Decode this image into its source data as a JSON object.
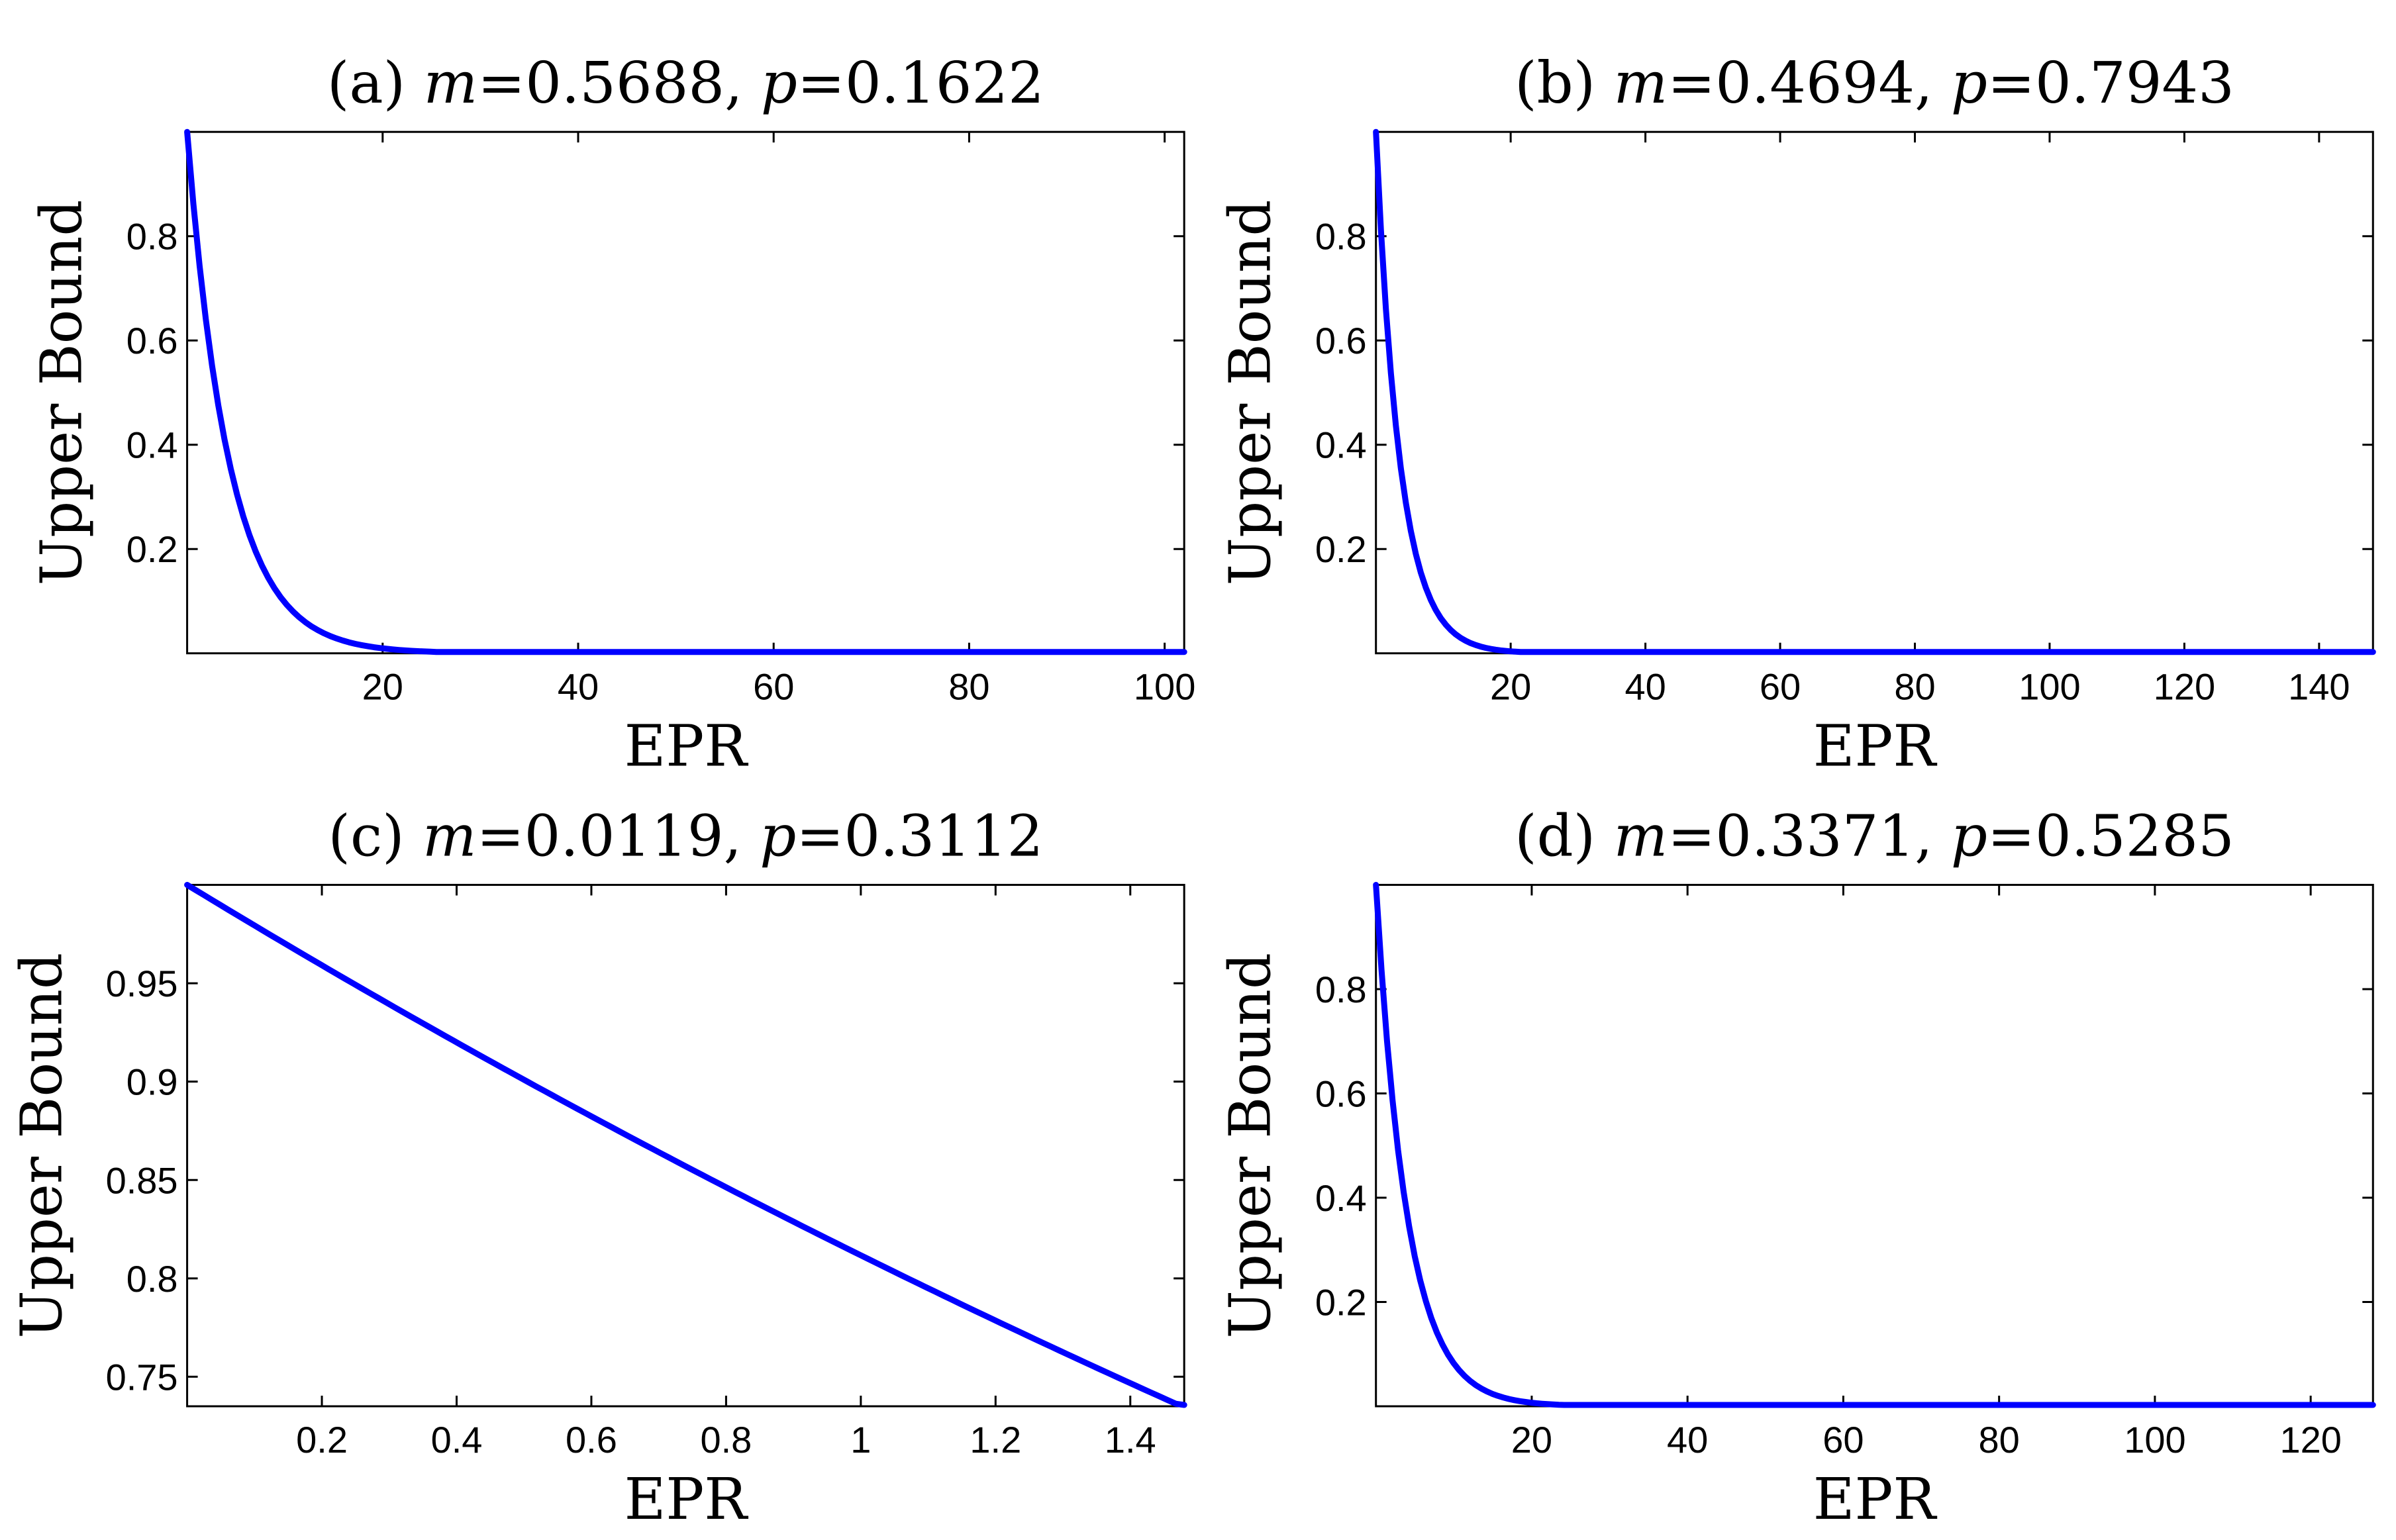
{
  "chart_data": [
    {
      "type": "line",
      "title_prefix": "(a) ",
      "m_value": "0.5688",
      "p_value": "0.1622",
      "xlabel": "EPR",
      "ylabel": "Upper Bound",
      "xlim": [
        0,
        102
      ],
      "ylim": [
        0,
        1.0
      ],
      "xticks": [
        20,
        40,
        60,
        80,
        100
      ],
      "xtick_labels": [
        "20",
        "40",
        "60",
        "80",
        "100"
      ],
      "yticks": [
        0.2,
        0.4,
        0.6,
        0.8
      ],
      "ytick_labels": [
        "0.2",
        "0.4",
        "0.6",
        "0.8"
      ],
      "series": [
        {
          "name": "upper-bound",
          "color": "#0000ff",
          "x_start": 0,
          "x_end": 102,
          "y0": 1.0,
          "decay_rate": 0.233,
          "n_points": 160
        }
      ]
    },
    {
      "type": "line",
      "title_prefix": "(b) ",
      "m_value": "0.4694",
      "p_value": "0.7943",
      "xlabel": "EPR",
      "ylabel": "Upper Bound",
      "xlim": [
        0,
        148
      ],
      "ylim": [
        0,
        1.0
      ],
      "xticks": [
        20,
        40,
        60,
        80,
        100,
        120,
        140
      ],
      "xtick_labels": [
        "20",
        "40",
        "60",
        "80",
        "100",
        "120",
        "140"
      ],
      "yticks": [
        0.2,
        0.4,
        0.6,
        0.8
      ],
      "ytick_labels": [
        "0.2",
        "0.4",
        "0.6",
        "0.8"
      ],
      "series": [
        {
          "name": "upper-bound",
          "color": "#0000ff",
          "x_start": 0,
          "x_end": 148,
          "y0": 1.0,
          "decay_rate": 0.28,
          "n_points": 200
        }
      ]
    },
    {
      "type": "line",
      "title_prefix": "(c) ",
      "m_value": "0.0119",
      "p_value": "0.3112",
      "xlabel": "EPR",
      "ylabel": "Upper Bound",
      "xlim": [
        0,
        1.48
      ],
      "ylim": [
        0.735,
        1.0
      ],
      "xticks": [
        0.2,
        0.4,
        0.6,
        0.8,
        1.0,
        1.2,
        1.4
      ],
      "xtick_labels": [
        "0.2",
        "0.4",
        "0.6",
        "0.8",
        "1",
        "1.2",
        "1.4"
      ],
      "yticks": [
        0.75,
        0.8,
        0.85,
        0.9,
        0.95
      ],
      "ytick_labels": [
        "0.75",
        "0.8",
        "0.85",
        "0.9",
        "0.95"
      ],
      "series": [
        {
          "name": "upper-bound",
          "color": "#0000ff",
          "x_start": 0,
          "x_end": 1.48,
          "y0": 1.0,
          "decay_rate": 0.2086,
          "n_points": 120
        }
      ]
    },
    {
      "type": "line",
      "title_prefix": "(d) ",
      "m_value": "0.3371",
      "p_value": "0.5285",
      "xlabel": "EPR",
      "ylabel": "Upper Bound",
      "xlim": [
        0,
        128
      ],
      "ylim": [
        0,
        1.0
      ],
      "xticks": [
        20,
        40,
        60,
        80,
        100,
        120
      ],
      "xtick_labels": [
        "20",
        "40",
        "60",
        "80",
        "100",
        "120"
      ],
      "yticks": [
        0.2,
        0.4,
        0.6,
        0.8
      ],
      "ytick_labels": [
        "0.2",
        "0.4",
        "0.6",
        "0.8"
      ],
      "series": [
        {
          "name": "upper-bound",
          "color": "#0000ff",
          "x_start": 0,
          "x_end": 128,
          "y0": 1.0,
          "decay_rate": 0.25,
          "n_points": 180
        }
      ]
    }
  ]
}
